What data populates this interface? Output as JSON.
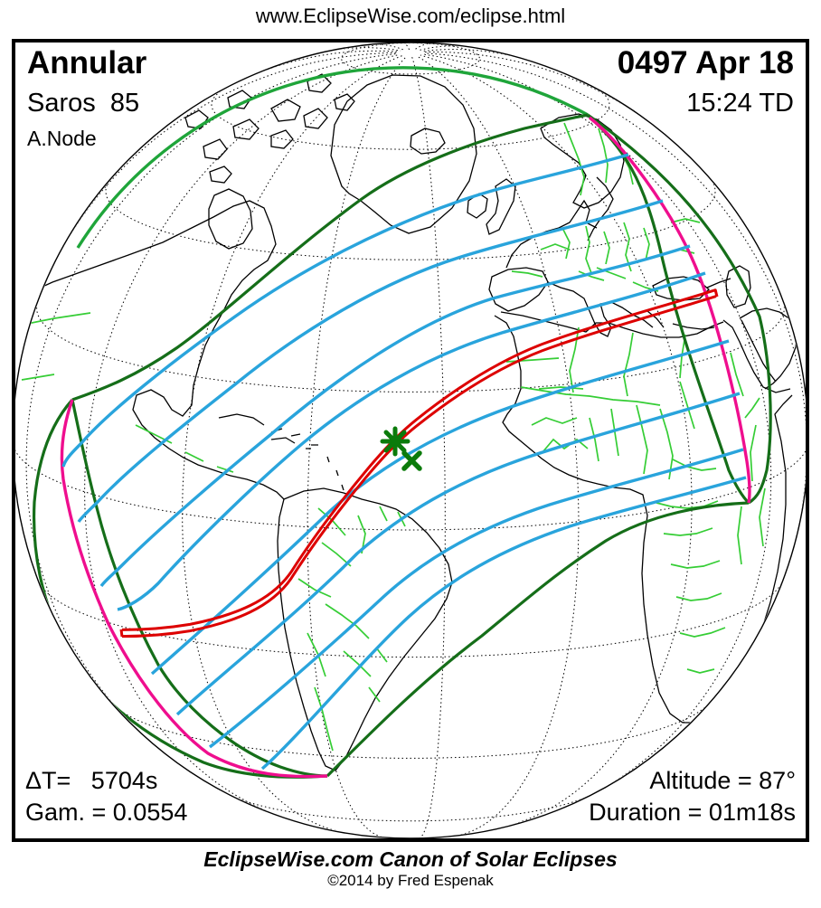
{
  "header": {
    "url": "www.EclipseWise.com/eclipse.html"
  },
  "info_panel": {
    "eclipse_type": "Annular",
    "saros": "Saros  85",
    "node": "A.Node",
    "date": "0497 Apr 18",
    "time": "15:24 TD",
    "delta_t": "ΔT=   5704s",
    "gamma": "Gam. = 0.0554",
    "altitude": "Altitude = 87°",
    "duration": "Duration = 01m18s"
  },
  "footer": {
    "title": "EclipseWise.com Canon of Solar Eclipses",
    "copyright": "©2014 by Fred Espenak"
  },
  "map": {
    "colors": {
      "frame": "#000000",
      "graticule": "#000000",
      "coastline": "#000000",
      "country_border": "#35CD35",
      "penumbra_limit": "#156E19",
      "limb_arc_green": "#1FA53A",
      "sunrise_sunset": "#EF0E8E",
      "isoline": "#29A4DC",
      "central_path": "#DD0000",
      "marker": "#0B7B0B"
    },
    "markers": {
      "greatest_eclipse": "asterisk",
      "sub_solar_point": "x-cross"
    }
  }
}
